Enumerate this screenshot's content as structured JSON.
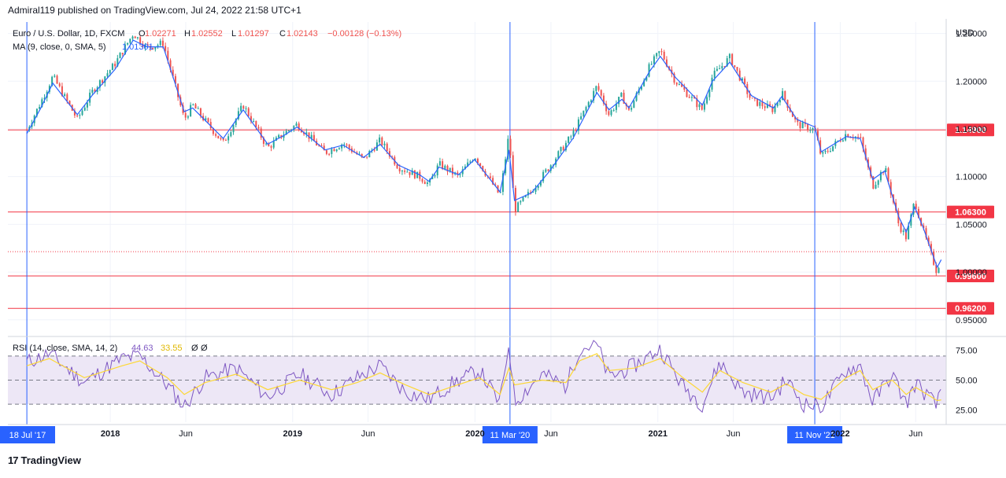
{
  "header": {
    "published": "Admiral119 published on TradingView.com, Jul 24, 2022 21:58 UTC+1"
  },
  "legend": {
    "symbol": "Euro / U.S. Dollar, 1D, FXCM",
    "o_label": "O",
    "o": "1.02271",
    "h_label": "H",
    "h": "1.02552",
    "l_label": "L",
    "l": "1.01297",
    "c_label": "C",
    "c": "1.02143",
    "change": "−0.00128 (−0.13%)",
    "ma_label": "MA (9, close, 0, SMA, 5)",
    "ma_value": "1.01301",
    "rsi_label": "RSI (14, close, SMA, 14, 2)",
    "rsi_value": "44.63",
    "rsi_ma_value": "33.55",
    "rsi_extra1": "Ø",
    "rsi_extra2": "Ø"
  },
  "colors": {
    "up": "#26a69a",
    "down": "#ef5350",
    "ma": "#2962ff",
    "hline": "#f23645",
    "vline": "#2962ff",
    "rsi": "#7e57c2",
    "rsi_ma": "#fdd835",
    "rsi_band": "#ede7f6",
    "grid": "#f0f3fa",
    "axis_text": "#131722"
  },
  "footer": {
    "brand": "TradingView",
    "logo_glyph": "17"
  },
  "chart_data": {
    "type": "line",
    "title": "Euro / U.S. Dollar, 1D, FXCM",
    "y_axis_title": "USD",
    "ylim": [
      0.935,
      1.262
    ],
    "grid": true,
    "x_ticks": [
      "2018",
      "Jun",
      "2019",
      "Jun",
      "2020",
      "Jun",
      "2021",
      "Jun",
      "2022",
      "Jun"
    ],
    "y_ticks": [
      "1.25000",
      "1.20000",
      "1.15000",
      "1.10000",
      "1.05000",
      "1.00000",
      "0.95000"
    ],
    "series": [
      {
        "name": "",
        "x": [
          "2017-07-18",
          "2017-08-15",
          "2017-09-08",
          "2017-10-27",
          "2017-11-27",
          "2018-01-10",
          "2018-02-16",
          "2018-03-15",
          "2018-04-17",
          "2018-05-29",
          "2018-06-15",
          "2018-08-15",
          "2018-09-24",
          "2018-11-12",
          "2018-12-14",
          "2019-01-10",
          "2019-03-07",
          "2019-04-12",
          "2019-05-23",
          "2019-06-25",
          "2019-08-01",
          "2019-09-12",
          "2019-10-01",
          "2019-10-21",
          "2019-11-29",
          "2019-12-31",
          "2020-02-20",
          "2020-03-09",
          "2020-03-20",
          "2020-04-23",
          "2020-05-28",
          "2020-07-15",
          "2020-09-01",
          "2020-09-25",
          "2020-10-21",
          "2020-11-04",
          "2020-12-15",
          "2021-01-06",
          "2021-02-05",
          "2021-03-31",
          "2021-04-20",
          "2021-05-25",
          "2021-07-07",
          "2021-08-20",
          "2021-09-06",
          "2021-10-06",
          "2021-11-11",
          "2021-11-24",
          "2022-01-13",
          "2022-02-10",
          "2022-03-07",
          "2022-03-31",
          "2022-04-28",
          "2022-05-13",
          "2022-05-30",
          "2022-06-15",
          "2022-07-14",
          "2022-07-22"
        ],
        "values": [
          1.149,
          1.178,
          1.205,
          1.16,
          1.19,
          1.218,
          1.25,
          1.235,
          1.24,
          1.16,
          1.175,
          1.135,
          1.175,
          1.13,
          1.145,
          1.155,
          1.125,
          1.135,
          1.118,
          1.138,
          1.11,
          1.1,
          1.092,
          1.113,
          1.1,
          1.122,
          1.08,
          1.145,
          1.065,
          1.085,
          1.11,
          1.145,
          1.195,
          1.165,
          1.185,
          1.168,
          1.215,
          1.232,
          1.2,
          1.17,
          1.205,
          1.225,
          1.18,
          1.17,
          1.188,
          1.155,
          1.149,
          1.121,
          1.145,
          1.14,
          1.09,
          1.11,
          1.05,
          1.036,
          1.075,
          1.045,
          0.999,
          1.021
        ]
      },
      {
        "name": "MA (9, close, 0, SMA, 5)",
        "x": [
          "2017-07-18",
          "2017-08-15",
          "2017-09-08",
          "2017-10-27",
          "2017-11-27",
          "2018-01-10",
          "2018-02-16",
          "2018-03-15",
          "2018-04-17",
          "2018-05-29",
          "2018-06-15",
          "2018-08-15",
          "2018-09-24",
          "2018-11-12",
          "2018-12-14",
          "2019-01-10",
          "2019-03-07",
          "2019-04-12",
          "2019-05-23",
          "2019-06-25",
          "2019-08-01",
          "2019-09-12",
          "2019-10-01",
          "2019-10-21",
          "2019-11-29",
          "2019-12-31",
          "2020-02-20",
          "2020-03-09",
          "2020-03-20",
          "2020-04-23",
          "2020-05-28",
          "2020-07-15",
          "2020-09-01",
          "2020-09-25",
          "2020-10-21",
          "2020-11-04",
          "2020-12-15",
          "2021-01-06",
          "2021-02-05",
          "2021-03-31",
          "2021-04-20",
          "2021-05-25",
          "2021-07-07",
          "2021-08-20",
          "2021-09-06",
          "2021-10-06",
          "2021-11-11",
          "2021-11-24",
          "2022-01-13",
          "2022-02-10",
          "2022-03-07",
          "2022-03-31",
          "2022-04-28",
          "2022-05-13",
          "2022-05-30",
          "2022-06-15",
          "2022-07-14",
          "2022-07-22"
        ],
        "values": [
          1.145,
          1.172,
          1.198,
          1.165,
          1.186,
          1.212,
          1.243,
          1.236,
          1.236,
          1.168,
          1.172,
          1.14,
          1.17,
          1.134,
          1.143,
          1.152,
          1.128,
          1.133,
          1.12,
          1.134,
          1.112,
          1.102,
          1.095,
          1.11,
          1.102,
          1.118,
          1.084,
          1.128,
          1.075,
          1.083,
          1.105,
          1.14,
          1.188,
          1.17,
          1.181,
          1.172,
          1.21,
          1.226,
          1.204,
          1.175,
          1.2,
          1.22,
          1.185,
          1.172,
          1.184,
          1.16,
          1.152,
          1.126,
          1.142,
          1.14,
          1.097,
          1.106,
          1.058,
          1.042,
          1.068,
          1.048,
          1.005,
          1.013
        ]
      }
    ],
    "horizontal_levels": [
      {
        "label": "1.14900",
        "value": 1.149
      },
      {
        "label": "1.06300",
        "value": 1.063
      },
      {
        "label": "0.99600",
        "value": 0.996
      },
      {
        "label": "0.96200",
        "value": 0.962
      }
    ],
    "current_price": 1.02143,
    "vertical_markers": [
      {
        "label": "18 Jul '17",
        "date": "2017-07-18"
      },
      {
        "label": "11 Mar '20",
        "date": "2020-03-11"
      },
      {
        "label": "11 Nov '21",
        "date": "2021-11-11"
      }
    ],
    "rsi": {
      "ylim": [
        15,
        85
      ],
      "y_ticks": [
        "75.00",
        "50.00",
        "25.00"
      ],
      "overbought": 70,
      "midline": 50,
      "oversold": 30,
      "x": [
        "2017-07-18",
        "2017-09-01",
        "2017-11-10",
        "2018-01-25",
        "2018-03-01",
        "2018-04-25",
        "2018-05-29",
        "2018-07-10",
        "2018-09-10",
        "2018-11-12",
        "2019-01-15",
        "2019-03-20",
        "2019-05-10",
        "2019-06-25",
        "2019-08-15",
        "2019-10-01",
        "2019-11-20",
        "2020-01-10",
        "2020-02-20",
        "2020-03-09",
        "2020-03-20",
        "2020-05-15",
        "2020-07-01",
        "2020-07-28",
        "2020-09-01",
        "2020-09-25",
        "2020-11-15",
        "2021-01-06",
        "2021-02-20",
        "2021-03-31",
        "2021-05-05",
        "2021-06-20",
        "2021-08-15",
        "2021-09-15",
        "2021-10-20",
        "2021-11-24",
        "2022-01-13",
        "2022-02-10",
        "2022-03-07",
        "2022-04-15",
        "2022-05-13",
        "2022-06-01",
        "2022-07-14",
        "2022-07-22"
      ],
      "values": [
        65,
        72,
        48,
        68,
        70,
        46,
        28,
        52,
        60,
        36,
        55,
        38,
        52,
        62,
        40,
        34,
        48,
        58,
        30,
        82,
        32,
        55,
        45,
        76,
        80,
        52,
        62,
        76,
        45,
        30,
        65,
        40,
        35,
        50,
        30,
        28,
        58,
        62,
        32,
        55,
        30,
        48,
        28,
        44.63
      ],
      "ma_values": [
        62,
        68,
        52,
        62,
        66,
        52,
        38,
        48,
        55,
        42,
        50,
        42,
        48,
        56,
        46,
        38,
        45,
        52,
        38,
        60,
        46,
        50,
        48,
        66,
        72,
        58,
        60,
        68,
        52,
        40,
        58,
        48,
        40,
        47,
        38,
        34,
        52,
        58,
        42,
        50,
        38,
        44,
        33,
        33.55
      ]
    }
  }
}
